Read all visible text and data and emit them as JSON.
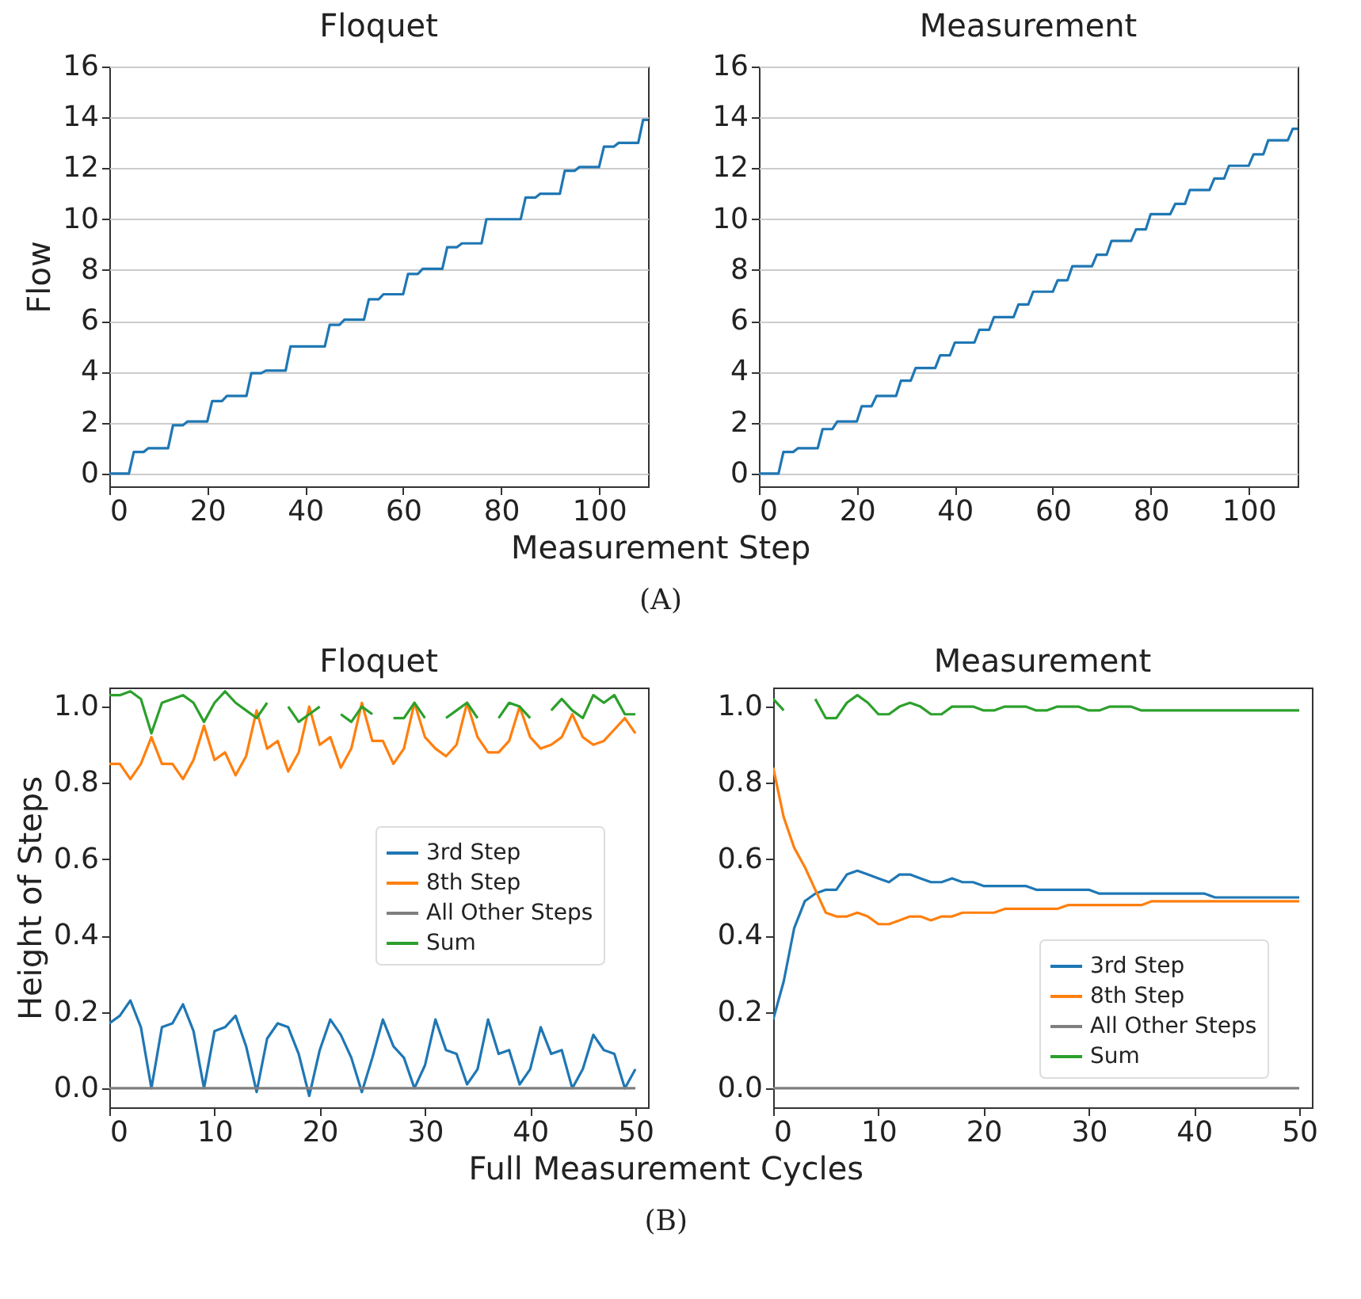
{
  "chart_data": [
    {
      "type": "line",
      "title": "Floquet",
      "ylabel": "Flow",
      "xlabel": "Measurement Step",
      "annotations": [
        "(A)"
      ],
      "xlim": [
        0,
        110
      ],
      "xticks": [
        0,
        20,
        40,
        60,
        80,
        100
      ],
      "ylim": [
        -0.5,
        16
      ],
      "yticks": [
        0,
        2,
        4,
        6,
        8,
        10,
        12,
        14,
        16
      ],
      "grid": "y",
      "legend": false,
      "series": [
        {
          "color": "#1f77b4",
          "x": [
            0,
            4,
            5,
            7,
            8,
            12,
            13,
            15,
            16,
            20,
            21,
            23,
            24,
            28,
            29,
            31,
            32,
            36,
            37,
            44,
            45,
            47,
            48,
            52,
            53,
            55,
            56,
            60,
            61,
            63,
            64,
            68,
            69,
            71,
            72,
            76,
            77,
            84,
            85,
            87,
            88,
            92,
            93,
            95,
            96,
            100,
            101,
            103,
            104,
            108,
            109,
            110
          ],
          "values": [
            0,
            0,
            0.85,
            0.85,
            1.0,
            1.0,
            1.9,
            1.9,
            2.05,
            2.05,
            2.85,
            2.85,
            3.05,
            3.05,
            3.95,
            3.95,
            4.05,
            4.05,
            5.0,
            5.0,
            5.85,
            5.85,
            6.05,
            6.05,
            6.85,
            6.85,
            7.05,
            7.05,
            7.85,
            7.85,
            8.05,
            8.05,
            8.9,
            8.9,
            9.05,
            9.05,
            10.0,
            10.0,
            10.85,
            10.85,
            11.0,
            11.0,
            11.9,
            11.9,
            12.05,
            12.05,
            12.85,
            12.85,
            13.0,
            13.0,
            13.9,
            13.9
          ]
        }
      ]
    },
    {
      "type": "line",
      "title": "Measurement",
      "xlim": [
        0,
        110
      ],
      "xticks": [
        0,
        20,
        40,
        60,
        80,
        100
      ],
      "ylim": [
        -0.5,
        16
      ],
      "yticks": [
        0,
        2,
        4,
        6,
        8,
        10,
        12,
        14,
        16
      ],
      "grid": "y",
      "legend": false,
      "series": [
        {
          "color": "#1f77b4",
          "x": [
            0,
            4,
            5,
            7,
            8,
            12,
            13,
            15,
            16,
            20,
            21,
            23,
            24,
            28,
            29,
            31,
            32,
            36,
            37,
            39,
            40,
            44,
            45,
            47,
            48,
            52,
            53,
            55,
            56,
            60,
            61,
            63,
            64,
            68,
            69,
            71,
            72,
            76,
            77,
            79,
            80,
            84,
            85,
            87,
            88,
            92,
            93,
            95,
            96,
            100,
            101,
            103,
            104,
            108,
            109,
            110
          ],
          "values": [
            0,
            0,
            0.85,
            0.85,
            1.0,
            1.0,
            1.75,
            1.75,
            2.05,
            2.05,
            2.65,
            2.65,
            3.05,
            3.05,
            3.65,
            3.65,
            4.15,
            4.15,
            4.65,
            4.65,
            5.15,
            5.15,
            5.65,
            5.65,
            6.15,
            6.15,
            6.65,
            6.65,
            7.15,
            7.15,
            7.6,
            7.6,
            8.15,
            8.15,
            8.6,
            8.6,
            9.15,
            9.15,
            9.6,
            9.6,
            10.2,
            10.2,
            10.6,
            10.6,
            11.15,
            11.15,
            11.6,
            11.6,
            12.1,
            12.1,
            12.55,
            12.55,
            13.1,
            13.1,
            13.55,
            13.55
          ]
        }
      ]
    },
    {
      "type": "line",
      "title": "Floquet",
      "ylabel": "Height of Steps",
      "xlabel": "Full Measurement Cycles",
      "annotations": [
        "(B)"
      ],
      "xlim": [
        0,
        51.2
      ],
      "xticks": [
        0,
        10,
        20,
        30,
        40,
        50
      ],
      "ylim": [
        -0.05,
        1.05
      ],
      "yticks": [
        {
          "value": 0,
          "label": "0.0"
        },
        {
          "value": 0.2,
          "label": "0.2"
        },
        {
          "value": 0.4,
          "label": "0.4"
        },
        {
          "value": 0.6,
          "label": "0.6"
        },
        {
          "value": 0.8,
          "label": "0.8"
        },
        {
          "value": 1,
          "label": "1.0"
        }
      ],
      "legend": "right",
      "x": [
        0,
        1,
        2,
        3,
        4,
        5,
        6,
        7,
        8,
        9,
        10,
        11,
        12,
        13,
        14,
        15,
        16,
        17,
        18,
        19,
        20,
        21,
        22,
        23,
        24,
        25,
        26,
        27,
        28,
        29,
        30,
        31,
        32,
        33,
        34,
        35,
        36,
        37,
        38,
        39,
        40,
        41,
        42,
        43,
        44,
        45,
        46,
        47,
        48,
        49,
        50
      ],
      "series": [
        {
          "name": "3rd Step",
          "color": "#1f77b4",
          "values": [
            0.17,
            0.19,
            0.23,
            0.16,
            0.0,
            0.16,
            0.17,
            0.22,
            0.15,
            0.0,
            0.15,
            0.16,
            0.19,
            0.11,
            -0.01,
            0.13,
            0.17,
            0.16,
            0.09,
            -0.02,
            0.1,
            0.18,
            0.14,
            0.08,
            -0.01,
            0.08,
            0.18,
            0.11,
            0.08,
            0.0,
            0.06,
            0.18,
            0.1,
            0.09,
            0.01,
            0.05,
            0.18,
            0.09,
            0.1,
            0.01,
            0.05,
            0.16,
            0.09,
            0.1,
            0.0,
            0.05,
            0.14,
            0.1,
            0.09,
            0.0,
            0.05
          ]
        },
        {
          "name": "8th Step",
          "color": "#ff7f0e",
          "values": [
            0.85,
            0.85,
            0.81,
            0.85,
            0.92,
            0.85,
            0.85,
            0.81,
            0.86,
            0.95,
            0.86,
            0.88,
            0.82,
            0.87,
            0.99,
            0.89,
            0.91,
            0.83,
            0.88,
            1.0,
            0.9,
            0.92,
            0.84,
            0.89,
            1.01,
            0.91,
            0.91,
            0.85,
            0.89,
            1.01,
            0.92,
            0.89,
            0.87,
            0.9,
            1.01,
            0.92,
            0.88,
            0.88,
            0.91,
            1.0,
            0.92,
            0.89,
            0.9,
            0.92,
            0.98,
            0.92,
            0.9,
            0.91,
            0.94,
            0.97,
            0.93
          ]
        },
        {
          "name": "All Other Steps",
          "color": "#7f7f7f",
          "values": [
            0,
            0,
            0,
            0,
            0,
            0,
            0,
            0,
            0,
            0,
            0,
            0,
            0,
            0,
            0,
            0,
            0,
            0,
            0,
            0,
            0,
            0,
            0,
            0,
            0,
            0,
            0,
            0,
            0,
            0,
            0,
            0,
            0,
            0,
            0,
            0,
            0,
            0,
            0,
            0,
            0,
            0,
            0,
            0,
            0,
            0,
            0,
            0,
            0,
            0,
            0
          ]
        },
        {
          "name": "Sum",
          "color": "#2ca02c",
          "values": [
            1.03,
            1.03,
            1.04,
            1.02,
            0.93,
            1.01,
            1.02,
            1.03,
            1.01,
            0.96,
            1.01,
            1.04,
            1.01,
            0.99,
            0.97,
            1.01,
            null,
            1.0,
            0.96,
            0.98,
            1.0,
            null,
            0.98,
            0.96,
            1.0,
            0.98,
            null,
            0.97,
            0.97,
            1.01,
            0.97,
            null,
            0.97,
            0.99,
            1.01,
            0.97,
            null,
            0.97,
            1.01,
            1.0,
            0.97,
            null,
            0.99,
            1.02,
            0.99,
            0.97,
            1.03,
            1.01,
            1.03,
            0.98,
            0.98
          ]
        }
      ]
    },
    {
      "type": "line",
      "title": "Measurement",
      "xlim": [
        0,
        51.2
      ],
      "xticks": [
        0,
        10,
        20,
        30,
        40,
        50
      ],
      "ylim": [
        -0.05,
        1.05
      ],
      "yticks": [
        {
          "value": 0,
          "label": "0.0"
        },
        {
          "value": 0.2,
          "label": "0.2"
        },
        {
          "value": 0.4,
          "label": "0.4"
        },
        {
          "value": 0.6,
          "label": "0.6"
        },
        {
          "value": 0.8,
          "label": "0.8"
        },
        {
          "value": 1,
          "label": "1.0"
        }
      ],
      "legend": "bottom right",
      "x": [
        0,
        1,
        2,
        3,
        4,
        5,
        6,
        7,
        8,
        9,
        10,
        11,
        12,
        13,
        14,
        15,
        16,
        17,
        18,
        19,
        20,
        21,
        22,
        23,
        24,
        25,
        26,
        27,
        28,
        29,
        30,
        31,
        32,
        33,
        34,
        35,
        36,
        37,
        38,
        39,
        40,
        41,
        42,
        43,
        44,
        45,
        46,
        47,
        48,
        49,
        50
      ],
      "series": [
        {
          "name": "3rd Step",
          "color": "#1f77b4",
          "values": [
            0.18,
            0.28,
            0.42,
            0.49,
            0.51,
            0.52,
            0.52,
            0.56,
            0.57,
            0.56,
            0.55,
            0.54,
            0.56,
            0.56,
            0.55,
            0.54,
            0.54,
            0.55,
            0.54,
            0.54,
            0.53,
            0.53,
            0.53,
            0.53,
            0.53,
            0.52,
            0.52,
            0.52,
            0.52,
            0.52,
            0.52,
            0.51,
            0.51,
            0.51,
            0.51,
            0.51,
            0.51,
            0.51,
            0.51,
            0.51,
            0.51,
            0.51,
            0.5,
            0.5,
            0.5,
            0.5,
            0.5,
            0.5,
            0.5,
            0.5,
            0.5
          ]
        },
        {
          "name": "8th Step",
          "color": "#ff7f0e",
          "values": [
            0.84,
            0.71,
            0.63,
            0.58,
            0.52,
            0.46,
            0.45,
            0.45,
            0.46,
            0.45,
            0.43,
            0.43,
            0.44,
            0.45,
            0.45,
            0.44,
            0.45,
            0.45,
            0.46,
            0.46,
            0.46,
            0.46,
            0.47,
            0.47,
            0.47,
            0.47,
            0.47,
            0.47,
            0.48,
            0.48,
            0.48,
            0.48,
            0.48,
            0.48,
            0.48,
            0.48,
            0.49,
            0.49,
            0.49,
            0.49,
            0.49,
            0.49,
            0.49,
            0.49,
            0.49,
            0.49,
            0.49,
            0.49,
            0.49,
            0.49,
            0.49
          ]
        },
        {
          "name": "All Other Steps",
          "color": "#7f7f7f",
          "values": [
            0,
            0,
            0,
            0,
            0,
            0,
            0,
            0,
            0,
            0,
            0,
            0,
            0,
            0,
            0,
            0,
            0,
            0,
            0,
            0,
            0,
            0,
            0,
            0,
            0,
            0,
            0,
            0,
            0,
            0,
            0,
            0,
            0,
            0,
            0,
            0,
            0,
            0,
            0,
            0,
            0,
            0,
            0,
            0,
            0,
            0,
            0,
            0,
            0,
            0,
            0
          ]
        },
        {
          "name": "Sum",
          "color": "#2ca02c",
          "values": [
            1.02,
            0.99,
            null,
            null,
            1.02,
            0.97,
            0.97,
            1.01,
            1.03,
            1.01,
            0.98,
            0.98,
            1.0,
            1.01,
            1.0,
            0.98,
            0.98,
            1.0,
            1.0,
            1.0,
            0.99,
            0.99,
            1.0,
            1.0,
            1.0,
            0.99,
            0.99,
            1.0,
            1.0,
            1.0,
            0.99,
            0.99,
            1.0,
            1.0,
            1.0,
            0.99,
            0.99,
            0.99,
            0.99,
            0.99,
            0.99,
            0.99,
            0.99,
            0.99,
            0.99,
            0.99,
            0.99,
            0.99,
            0.99,
            0.99,
            0.99
          ]
        }
      ]
    }
  ]
}
